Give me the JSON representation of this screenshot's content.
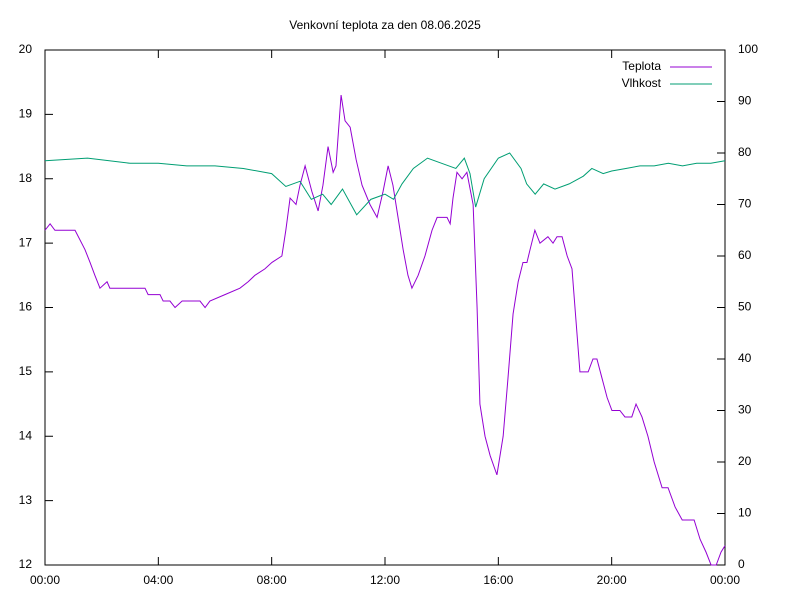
{
  "chart_data": {
    "type": "line",
    "title": "Venkovní teplota za den 08.06.2025",
    "xlim": [
      0,
      24
    ],
    "xticks": [
      {
        "value": 0,
        "label": "00:00"
      },
      {
        "value": 4,
        "label": "04:00"
      },
      {
        "value": 8,
        "label": "08:00"
      },
      {
        "value": 12,
        "label": "12:00"
      },
      {
        "value": 16,
        "label": "16:00"
      },
      {
        "value": 20,
        "label": "20:00"
      },
      {
        "value": 24,
        "label": "00:00"
      }
    ],
    "ylim": [
      12,
      20
    ],
    "yticks": [
      12,
      13,
      14,
      15,
      16,
      17,
      18,
      19,
      20
    ],
    "y2lim": [
      0,
      100
    ],
    "y2ticks": [
      0,
      10,
      20,
      30,
      40,
      50,
      60,
      70,
      80,
      90,
      100
    ],
    "grid": false,
    "legend": "top-right",
    "series": [
      {
        "name": "Teplota",
        "color": "#9400d3",
        "x": [
          0,
          0.18,
          0.35,
          1.06,
          1.41,
          1.59,
          1.76,
          1.94,
          2.19,
          2.29,
          3.53,
          3.64,
          4.06,
          4.17,
          4.41,
          4.59,
          4.84,
          5.47,
          5.65,
          5.82,
          6.35,
          6.88,
          7.17,
          7.41,
          7.76,
          8.01,
          8.36,
          8.5,
          8.65,
          8.86,
          9.0,
          9.18,
          9.42,
          9.64,
          9.81,
          9.99,
          10.17,
          10.27,
          10.45,
          10.59,
          10.77,
          10.98,
          11.19,
          11.47,
          11.72,
          11.93,
          12.11,
          12.28,
          12.46,
          12.64,
          12.81,
          12.95,
          13.17,
          13.41,
          13.66,
          13.84,
          14.19,
          14.3,
          14.4,
          14.54,
          14.72,
          14.89,
          15.11,
          15.25,
          15.35,
          15.53,
          15.71,
          15.95,
          16.17,
          16.34,
          16.52,
          16.7,
          16.87,
          17.01,
          17.12,
          17.29,
          17.47,
          17.75,
          17.93,
          18.07,
          18.25,
          18.43,
          18.6,
          18.74,
          18.88,
          19.17,
          19.34,
          19.48,
          19.66,
          19.84,
          20.01,
          20.29,
          20.47,
          20.71,
          20.86,
          21.07,
          21.28,
          21.5,
          21.78,
          21.99,
          22.24,
          22.49,
          22.91,
          23.12,
          23.33,
          23.51,
          23.69,
          23.86,
          24
        ],
        "values": [
          17.2,
          17.3,
          17.2,
          17.2,
          16.9,
          16.7,
          16.5,
          16.3,
          16.4,
          16.3,
          16.3,
          16.2,
          16.2,
          16.1,
          16.1,
          16.0,
          16.1,
          16.1,
          16.0,
          16.1,
          16.2,
          16.3,
          16.4,
          16.5,
          16.6,
          16.7,
          16.8,
          17.2,
          17.7,
          17.6,
          17.9,
          18.2,
          17.8,
          17.5,
          17.9,
          18.5,
          18.1,
          18.2,
          19.3,
          18.9,
          18.8,
          18.3,
          17.9,
          17.6,
          17.4,
          17.8,
          18.2,
          17.9,
          17.4,
          16.9,
          16.5,
          16.3,
          16.5,
          16.8,
          17.2,
          17.4,
          17.4,
          17.3,
          17.7,
          18.1,
          18.0,
          18.1,
          17.6,
          16.0,
          14.5,
          14.0,
          13.7,
          13.4,
          14.0,
          14.9,
          15.9,
          16.4,
          16.7,
          16.7,
          16.9,
          17.2,
          17.0,
          17.1,
          17.0,
          17.1,
          17.1,
          16.8,
          16.6,
          15.8,
          15.0,
          15.0,
          15.2,
          15.2,
          14.9,
          14.6,
          14.4,
          14.4,
          14.3,
          14.3,
          14.5,
          14.3,
          14.0,
          13.6,
          13.2,
          13.2,
          12.9,
          12.7,
          12.7,
          12.4,
          12.2,
          12.0,
          12.0,
          12.2,
          12.3
        ]
      },
      {
        "name": "Vlhkost",
        "color": "#009e73",
        "axis": "y2",
        "x": [
          0,
          1.5,
          3,
          4,
          5,
          6,
          7,
          8,
          8.5,
          9,
          9.4,
          9.8,
          10.1,
          10.5,
          11,
          11.5,
          12,
          12.3,
          12.6,
          13,
          13.5,
          14,
          14.5,
          14.8,
          15,
          15.2,
          15.5,
          16,
          16.4,
          16.8,
          17,
          17.3,
          17.6,
          18,
          18.5,
          19,
          19.3,
          19.7,
          20,
          20.5,
          21,
          21.5,
          22,
          22.5,
          23,
          23.5,
          24
        ],
        "values": [
          78.5,
          79,
          78,
          78,
          77.5,
          77.5,
          77,
          76,
          73.5,
          74.5,
          71,
          72,
          70,
          73,
          68,
          71,
          72,
          71,
          74,
          77,
          79,
          78,
          77,
          79,
          76,
          69.5,
          75,
          79,
          80,
          77,
          74,
          72,
          74,
          73,
          74,
          75.5,
          77,
          76,
          76.5,
          77,
          77.5,
          77.5,
          78,
          77.5,
          78,
          78,
          78.5
        ]
      }
    ]
  }
}
